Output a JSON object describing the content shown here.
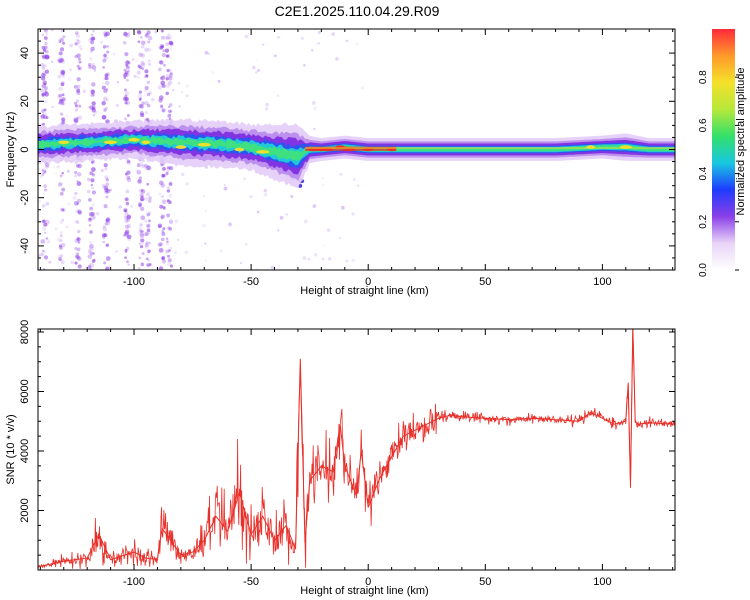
{
  "title": "C2E1.2025.110.04.29.R09",
  "colors": {
    "axis": "#000000",
    "snr_line": "#e8302a",
    "ridge_edge": "#7f2fe0",
    "ridge_mid": "#20c8d8",
    "ridge_core": "#3fe07f",
    "ridge_hot": "#e8302a",
    "scatter": "#8c3ce6"
  },
  "chart_data": [
    {
      "type": "heatmap",
      "title": "C2E1.2025.110.04.29.R09",
      "xlabel": "Height of straight line (km)",
      "ylabel": "Frequency (Hz)",
      "xlim": [
        -141,
        131
      ],
      "ylim": [
        -50,
        50
      ],
      "xticks": [
        -100,
        -50,
        0,
        50,
        100
      ],
      "yticks": [
        -40,
        -20,
        0,
        20,
        40
      ],
      "colorbar": {
        "label": "Normalized spectral amplitude",
        "range": [
          0,
          1
        ],
        "ticks": [
          "0.0",
          "0.2",
          "0.4",
          "0.6",
          "0.8"
        ],
        "colormap": [
          "#ffffff",
          "#e9d4f7",
          "#8b3fe8",
          "#1f3cff",
          "#18c8e0",
          "#33e06a",
          "#b6e83a",
          "#f4e12a",
          "#ff9a2a",
          "#ff2a3a"
        ]
      },
      "ridge": {
        "x": [
          -141,
          -120,
          -100,
          -80,
          -60,
          -50,
          -40,
          -30,
          -25,
          -20,
          -10,
          0,
          20,
          40,
          60,
          80,
          100,
          110,
          120,
          131
        ],
        "center_hz": [
          2,
          3,
          4,
          3,
          2,
          1,
          -1,
          -3,
          0,
          0,
          1,
          0,
          0,
          0,
          0,
          0,
          1,
          1,
          0,
          0
        ],
        "half_width_hz": [
          4,
          4,
          4,
          5,
          5,
          5,
          6,
          7,
          3,
          2.5,
          2.5,
          2.5,
          2.5,
          2.5,
          2.5,
          2.5,
          2.5,
          3,
          2.5,
          2.5
        ]
      },
      "noise_columns_x": [
        -138,
        -131,
        -124,
        -118,
        -112,
        -103,
        -97,
        -94,
        -88,
        -85
      ]
    },
    {
      "type": "line",
      "xlabel": "Height of straight line (km)",
      "ylabel": "SNR (10 * v/v)",
      "xlim": [
        -141,
        131
      ],
      "ylim": [
        0,
        8100
      ],
      "xticks": [
        -100,
        -50,
        0,
        50,
        100
      ],
      "yticks": [
        2000,
        4000,
        6000,
        8000
      ],
      "series": [
        {
          "x": [
            -141,
            -130,
            -120,
            -115,
            -110,
            -100,
            -95,
            -90,
            -88,
            -80,
            -75,
            -70,
            -65,
            -60,
            -55,
            -50,
            -45,
            -40,
            -35,
            -31,
            -29,
            -27,
            -25,
            -20,
            -15,
            -12,
            -10,
            -5,
            -3,
            0,
            5,
            10,
            15,
            20,
            25,
            30,
            35,
            40,
            50,
            60,
            70,
            80,
            90,
            95,
            100,
            105,
            110,
            111,
            112,
            113,
            114,
            115,
            120,
            131
          ],
          "y": [
            100,
            300,
            400,
            1200,
            350,
            600,
            400,
            350,
            1400,
            500,
            600,
            1000,
            1800,
            1300,
            2600,
            1200,
            1800,
            1000,
            1500,
            700,
            7100,
            900,
            3000,
            3500,
            3300,
            4900,
            3500,
            2500,
            4000,
            2100,
            3100,
            3800,
            4500,
            4700,
            4900,
            5100,
            5200,
            5150,
            5100,
            5050,
            5100,
            5050,
            5000,
            5300,
            5100,
            4900,
            5000,
            6300,
            2800,
            8200,
            5000,
            4900,
            4950,
            4900
          ]
        }
      ]
    }
  ]
}
